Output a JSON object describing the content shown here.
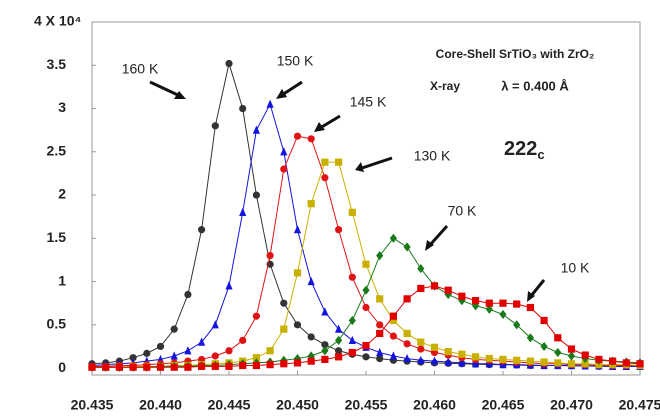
{
  "chart_data": {
    "type": "line",
    "annotations": [
      "Core-Shell SrTiO₃ with ZrO₂",
      "X-ray",
      "λ = 0.400 Å"
    ],
    "peak_label": {
      "text": "222",
      "sub": "c"
    },
    "x": [
      20.435,
      20.436,
      20.437,
      20.438,
      20.439,
      20.44,
      20.441,
      20.442,
      20.443,
      20.444,
      20.445,
      20.446,
      20.447,
      20.448,
      20.449,
      20.45,
      20.451,
      20.452,
      20.453,
      20.454,
      20.455,
      20.456,
      20.457,
      20.458,
      20.459,
      20.46,
      20.461,
      20.462,
      20.463,
      20.464,
      20.465,
      20.466,
      20.467,
      20.468,
      20.469,
      20.47,
      20.471,
      20.472,
      20.473,
      20.474,
      20.475
    ],
    "series": [
      {
        "name": "160 K",
        "color": "#333333",
        "marker": "circle",
        "values": [
          0.05,
          0.06,
          0.08,
          0.12,
          0.17,
          0.25,
          0.45,
          0.85,
          1.6,
          2.8,
          3.52,
          3.0,
          2.0,
          1.2,
          0.75,
          0.5,
          0.36,
          0.27,
          0.2,
          0.16,
          0.13,
          0.11,
          0.09,
          0.08,
          0.07,
          0.06,
          0.055,
          0.05,
          0.045,
          0.04,
          0.04,
          0.035,
          0.03,
          0.03,
          0.03,
          0.025,
          0.025,
          0.02,
          0.02,
          0.02,
          0.02
        ]
      },
      {
        "name": "150 K",
        "color": "#1414e0",
        "marker": "triangle",
        "values": [
          0.03,
          0.04,
          0.05,
          0.06,
          0.08,
          0.1,
          0.14,
          0.2,
          0.3,
          0.5,
          0.95,
          1.8,
          2.75,
          3.05,
          2.5,
          1.6,
          1.0,
          0.65,
          0.45,
          0.32,
          0.24,
          0.18,
          0.14,
          0.11,
          0.09,
          0.08,
          0.07,
          0.06,
          0.05,
          0.05,
          0.04,
          0.04,
          0.035,
          0.03,
          0.03,
          0.03,
          0.025,
          0.025,
          0.02,
          0.02,
          0.02
        ]
      },
      {
        "name": "145 K",
        "color": "#e01414",
        "marker": "circle",
        "values": [
          0.02,
          0.02,
          0.03,
          0.03,
          0.04,
          0.05,
          0.06,
          0.08,
          0.1,
          0.14,
          0.2,
          0.32,
          0.6,
          1.3,
          2.3,
          2.68,
          2.65,
          2.2,
          1.6,
          1.05,
          0.7,
          0.5,
          0.37,
          0.28,
          0.22,
          0.18,
          0.15,
          0.12,
          0.1,
          0.09,
          0.08,
          0.07,
          0.06,
          0.05,
          0.05,
          0.04,
          0.04,
          0.035,
          0.03,
          0.03,
          0.03
        ]
      },
      {
        "name": "130 K",
        "color": "#c9b000",
        "marker": "square",
        "values": [
          0.01,
          0.01,
          0.01,
          0.02,
          0.02,
          0.02,
          0.03,
          0.03,
          0.04,
          0.05,
          0.06,
          0.08,
          0.12,
          0.2,
          0.45,
          1.1,
          1.9,
          2.38,
          2.38,
          1.8,
          1.2,
          0.8,
          0.55,
          0.4,
          0.3,
          0.24,
          0.19,
          0.16,
          0.13,
          0.11,
          0.1,
          0.09,
          0.08,
          0.07,
          0.06,
          0.05,
          0.05,
          0.04,
          0.04,
          0.04,
          0.03
        ]
      },
      {
        "name": "70 K",
        "color": "#1a7a1a",
        "marker": "diamond",
        "values": [
          0.01,
          0.01,
          0.01,
          0.01,
          0.01,
          0.02,
          0.02,
          0.02,
          0.03,
          0.03,
          0.04,
          0.05,
          0.06,
          0.07,
          0.09,
          0.11,
          0.14,
          0.2,
          0.32,
          0.55,
          0.9,
          1.3,
          1.5,
          1.4,
          1.15,
          0.95,
          0.85,
          0.78,
          0.72,
          0.68,
          0.62,
          0.5,
          0.35,
          0.25,
          0.18,
          0.14,
          0.11,
          0.09,
          0.08,
          0.07,
          0.06
        ]
      },
      {
        "name": "10 K",
        "color": "#e00000",
        "marker": "square",
        "values": [
          0.01,
          0.01,
          0.01,
          0.01,
          0.01,
          0.01,
          0.01,
          0.01,
          0.02,
          0.02,
          0.02,
          0.03,
          0.03,
          0.04,
          0.05,
          0.06,
          0.08,
          0.1,
          0.13,
          0.18,
          0.26,
          0.4,
          0.6,
          0.8,
          0.92,
          0.95,
          0.9,
          0.83,
          0.78,
          0.75,
          0.75,
          0.74,
          0.7,
          0.55,
          0.35,
          0.22,
          0.15,
          0.1,
          0.08,
          0.06,
          0.05
        ]
      }
    ],
    "xlim": [
      20.435,
      20.475
    ],
    "xticks": [
      {
        "value": 20.435,
        "label": "20.435"
      },
      {
        "value": 20.44,
        "label": "20.440"
      },
      {
        "value": 20.445,
        "label": "20.445"
      },
      {
        "value": 20.45,
        "label": "20.450"
      },
      {
        "value": 20.455,
        "label": "20.455"
      },
      {
        "value": 20.46,
        "label": "20.460"
      },
      {
        "value": 20.465,
        "label": "20.465"
      },
      {
        "value": 20.47,
        "label": "20.470"
      },
      {
        "value": 20.475,
        "label": "20.475"
      }
    ],
    "ylim": [
      -0.08,
      4
    ],
    "yticks": [
      0,
      0.5,
      1,
      1.5,
      2,
      2.5,
      3,
      3.5,
      {
        "value": 4,
        "label": "4 X 10⁴"
      }
    ]
  }
}
